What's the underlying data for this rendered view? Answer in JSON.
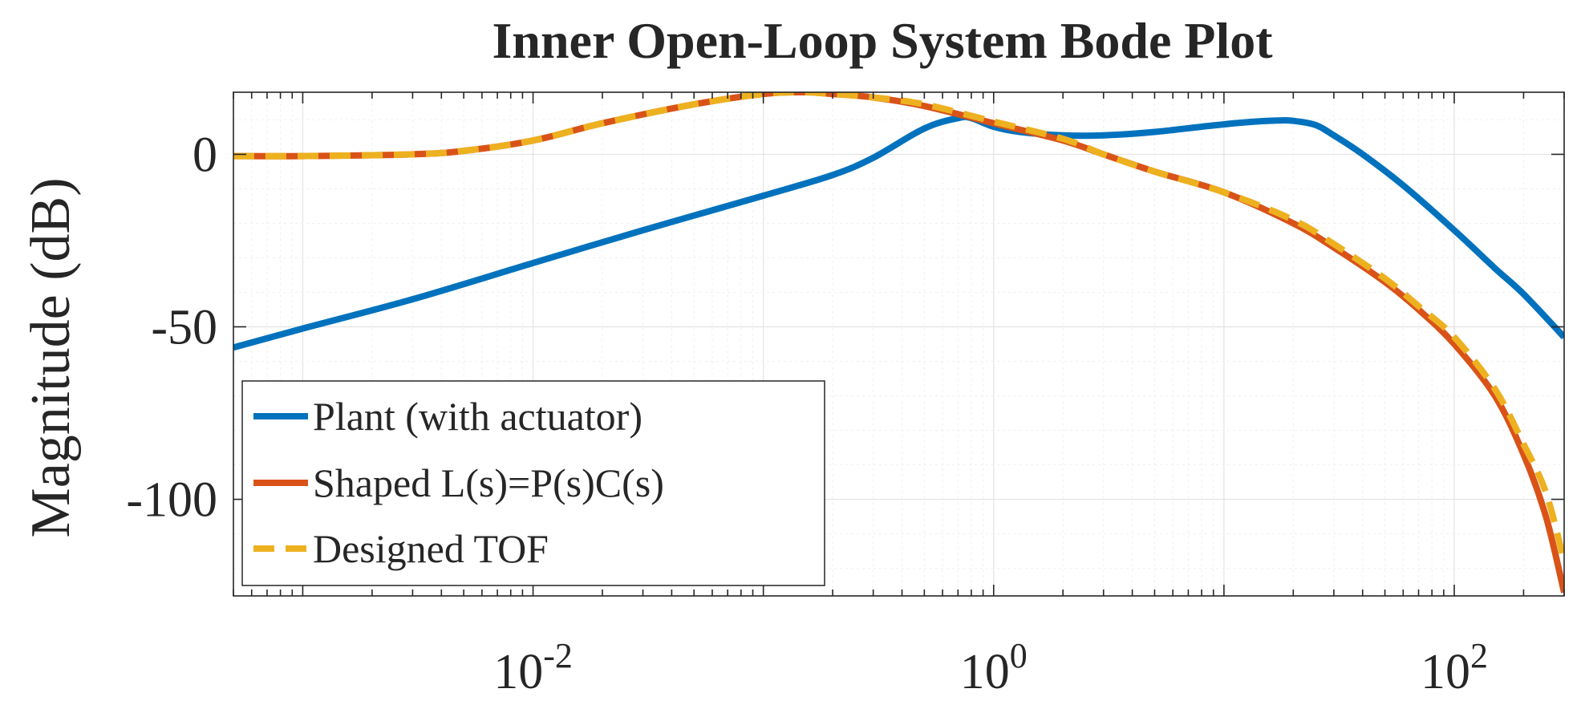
{
  "chart_data": {
    "type": "line",
    "title": "Inner Open-Loop System Bode Plot",
    "xlabel": "",
    "ylabel": "Magnitude (dB)",
    "xscale": "log",
    "xlim": [
      0.0005,
      300
    ],
    "ylim": [
      -128,
      18
    ],
    "grid": true,
    "legend_position": "bottom-left",
    "x_ticks": [
      {
        "base": "10",
        "exp": "-2",
        "value": 0.01
      },
      {
        "base": "10",
        "exp": "0",
        "value": 1
      },
      {
        "base": "10",
        "exp": "2",
        "value": 100
      }
    ],
    "y_ticks": [
      {
        "label": "0",
        "value": 0
      },
      {
        "label": "-50",
        "value": -50
      },
      {
        "label": "-100",
        "value": -100
      }
    ],
    "series": [
      {
        "name": "Plant (with actuator)",
        "color": "#0072BD",
        "dash": "solid",
        "x": [
          0.0005,
          0.001,
          0.003,
          0.01,
          0.03,
          0.1,
          0.2,
          0.3,
          0.5,
          0.7,
          0.8,
          1.0,
          1.3,
          2.0,
          3.0,
          5.0,
          8.0,
          12.0,
          17.0,
          20.0,
          25.0,
          30.0,
          40.0,
          60.0,
          100.0,
          150.0,
          200.0,
          300.0
        ],
        "values": [
          -56,
          -50.5,
          -42,
          -31.5,
          -22,
          -12,
          -6,
          -1,
          7.5,
          10.5,
          10.5,
          8,
          6.5,
          5.5,
          5.5,
          6.5,
          8,
          9.2,
          9.8,
          9.7,
          8.5,
          5.5,
          0,
          -9,
          -22,
          -33,
          -40.5,
          -53
        ]
      },
      {
        "name": "Shaped L(s)=P(s)C(s)",
        "color": "#D95319",
        "dash": "solid",
        "x": [
          0.0005,
          0.001,
          0.003,
          0.005,
          0.01,
          0.02,
          0.05,
          0.1,
          0.15,
          0.2,
          0.3,
          0.5,
          1.0,
          2.0,
          3.0,
          5.0,
          10.0,
          20.0,
          30.0,
          50.0,
          70.0,
          100.0,
          150.0,
          200.0,
          250.0,
          300.0
        ],
        "values": [
          -0.5,
          -0.5,
          0,
          1,
          4,
          9,
          14.5,
          17.5,
          18,
          17.5,
          16.5,
          14,
          9,
          4,
          0,
          -5,
          -11,
          -20,
          -27,
          -37,
          -45,
          -55,
          -70,
          -87,
          -105,
          -127
        ]
      },
      {
        "name": "Designed TOF",
        "color": "#EDB120",
        "dash": "dashed",
        "x": [
          0.0005,
          0.001,
          0.003,
          0.005,
          0.01,
          0.02,
          0.05,
          0.1,
          0.15,
          0.2,
          0.3,
          0.5,
          1.0,
          2.0,
          3.0,
          5.0,
          10.0,
          20.0,
          30.0,
          50.0,
          70.0,
          100.0,
          150.0,
          200.0,
          250.0,
          300.0
        ],
        "values": [
          -0.5,
          -0.5,
          0,
          1,
          4,
          9,
          14.5,
          17.5,
          18,
          17.5,
          16.5,
          14.5,
          9.5,
          4.5,
          0,
          -5,
          -11,
          -19,
          -26,
          -36,
          -44,
          -53,
          -68,
          -84,
          -98,
          -118
        ]
      }
    ]
  }
}
